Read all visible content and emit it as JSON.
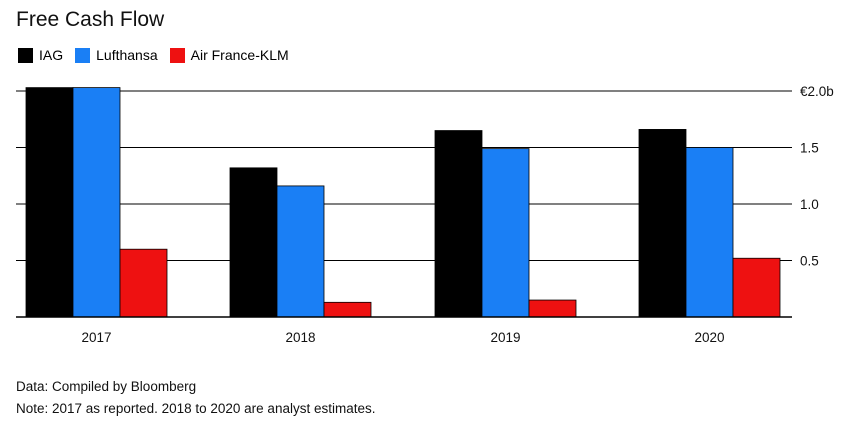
{
  "chart_data": {
    "type": "bar",
    "title": "Free Cash Flow",
    "categories": [
      "2017",
      "2018",
      "2019",
      "2020"
    ],
    "series": [
      {
        "name": "IAG",
        "color": "#000000",
        "values": [
          2.03,
          1.32,
          1.65,
          1.66
        ]
      },
      {
        "name": "Lufthansa",
        "color": "#1a7ff5",
        "values": [
          2.03,
          1.16,
          1.49,
          1.5
        ]
      },
      {
        "name": "Air France-KLM",
        "color": "#ee1111",
        "values": [
          0.6,
          0.13,
          0.15,
          0.52
        ]
      }
    ],
    "yticks": [
      {
        "value": 0.5,
        "label": "0.5"
      },
      {
        "value": 1.0,
        "label": "1.0"
      },
      {
        "value": 1.5,
        "label": "1.5"
      },
      {
        "value": 2.0,
        "label": "€2.0b"
      }
    ],
    "ylim": [
      0,
      2.0
    ],
    "ylabel": "",
    "xlabel": "",
    "grid": true,
    "legend_position": "top-left"
  },
  "footer": {
    "source": "Data: Compiled by Bloomberg",
    "note": "Note: 2017 as reported. 2018 to 2020 are analyst estimates."
  }
}
